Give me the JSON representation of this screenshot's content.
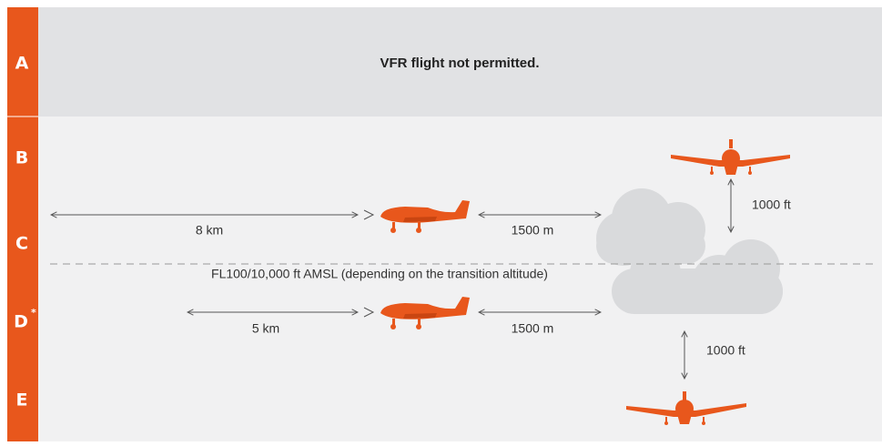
{
  "classes": [
    {
      "label": "A"
    },
    {
      "label": "B"
    },
    {
      "label": "C"
    },
    {
      "label": "D",
      "superscript": "*"
    },
    {
      "label": "E"
    }
  ],
  "class_a_note": "VFR flight not permitted.",
  "upper": {
    "horizontal_visibility": "8 km",
    "horizontal_cloud_distance": "1500 m",
    "vertical_cloud_distance": "1000 ft"
  },
  "boundary": "FL100/10,000 ft AMSL (depending on the transition altitude)",
  "lower": {
    "horizontal_visibility": "5 km",
    "horizontal_cloud_distance": "1500 m",
    "vertical_cloud_distance": "1000 ft"
  }
}
